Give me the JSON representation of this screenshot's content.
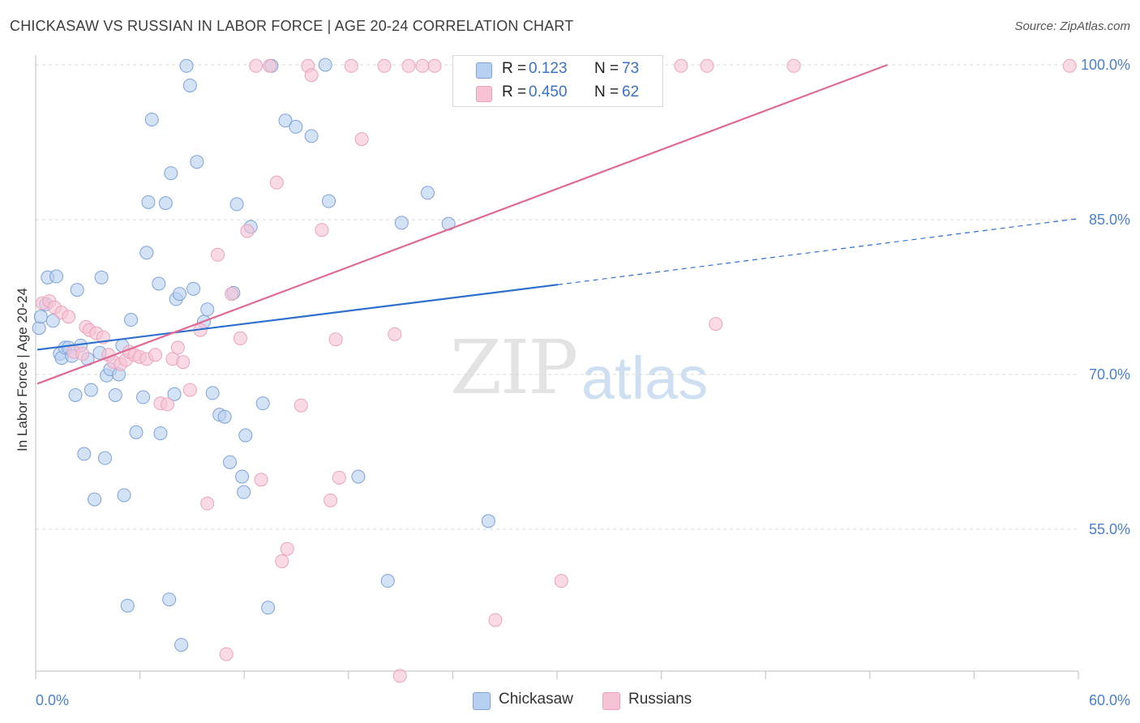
{
  "header": {
    "title": "CHICKASAW VS RUSSIAN IN LABOR FORCE | AGE 20-24 CORRELATION CHART",
    "source": "Source: ZipAtlas.com"
  },
  "watermark": {
    "zip": "ZIP",
    "atlas": "atlas"
  },
  "legend": {
    "rows": [
      {
        "r_label": "R =",
        "r_value": "0.123",
        "n_label": "N =",
        "n_value": "73"
      },
      {
        "r_label": "R =",
        "r_value": "0.450",
        "n_label": "N =",
        "n_value": "62"
      }
    ]
  },
  "bottom_legend": {
    "chickasaw": "Chickasaw",
    "russians": "Russians"
  },
  "colors": {
    "chickasaw_fill": "#b7cff0",
    "chickasaw_stroke": "#7ea3d8",
    "chickasaw_line": "#2f6fd0",
    "russians_fill": "#f7c3d4",
    "russians_stroke": "#eba3ba",
    "russians_line": "#e06a94",
    "tick_label": "#4a7fd0",
    "grid": "#d9d9d9"
  },
  "chart_data": {
    "type": "scatter",
    "title": "CHICKASAW VS RUSSIAN IN LABOR FORCE | AGE 20-24 CORRELATION CHART",
    "xlabel": "",
    "ylabel": "In Labor Force | Age 20-24",
    "xlim": [
      0,
      60
    ],
    "ylim": [
      40,
      100
    ],
    "x_tick_labels": [
      "0.0%",
      "60.0%"
    ],
    "y_ticks": [
      55,
      70,
      85,
      100
    ],
    "y_tick_labels": [
      "55.0%",
      "70.0%",
      "85.0%",
      "100.0%"
    ],
    "grid": true,
    "legend_position": "top-center",
    "series": [
      {
        "name": "Chickasaw",
        "r": 0.123,
        "n": 73,
        "trend": {
          "x": [
            0,
            30
          ],
          "y": [
            72.4,
            78.7
          ],
          "dashed_to": [
            60,
            85.1
          ]
        },
        "points": [
          [
            0.1,
            74.5
          ],
          [
            0.2,
            75.6
          ],
          [
            0.5,
            76.8
          ],
          [
            0.6,
            79.4
          ],
          [
            0.9,
            75.2
          ],
          [
            1.1,
            79.5
          ],
          [
            1.3,
            72.0
          ],
          [
            1.4,
            71.6
          ],
          [
            1.6,
            72.6
          ],
          [
            1.8,
            72.6
          ],
          [
            2.0,
            71.8
          ],
          [
            2.2,
            68.0
          ],
          [
            2.3,
            78.2
          ],
          [
            2.5,
            72.8
          ],
          [
            2.7,
            62.3
          ],
          [
            2.9,
            71.5
          ],
          [
            3.1,
            68.5
          ],
          [
            3.3,
            57.9
          ],
          [
            3.6,
            72.1
          ],
          [
            3.7,
            79.4
          ],
          [
            3.9,
            61.9
          ],
          [
            4.0,
            69.9
          ],
          [
            4.2,
            70.5
          ],
          [
            4.5,
            68.0
          ],
          [
            4.7,
            70.0
          ],
          [
            4.9,
            72.8
          ],
          [
            5.0,
            58.3
          ],
          [
            5.2,
            47.6
          ],
          [
            5.4,
            75.3
          ],
          [
            5.7,
            64.4
          ],
          [
            6.1,
            67.8
          ],
          [
            6.3,
            81.8
          ],
          [
            6.4,
            86.7
          ],
          [
            6.6,
            94.7
          ],
          [
            7.0,
            78.8
          ],
          [
            7.1,
            64.3
          ],
          [
            7.4,
            86.6
          ],
          [
            7.6,
            48.2
          ],
          [
            7.7,
            89.5
          ],
          [
            7.9,
            68.1
          ],
          [
            8.0,
            77.3
          ],
          [
            8.2,
            77.8
          ],
          [
            8.3,
            43.8
          ],
          [
            8.6,
            99.9
          ],
          [
            8.8,
            98.0
          ],
          [
            9.0,
            78.3
          ],
          [
            9.2,
            90.6
          ],
          [
            9.6,
            75.1
          ],
          [
            9.8,
            76.3
          ],
          [
            10.1,
            68.2
          ],
          [
            10.5,
            66.1
          ],
          [
            10.8,
            65.9
          ],
          [
            11.1,
            61.5
          ],
          [
            11.3,
            77.9
          ],
          [
            11.5,
            86.5
          ],
          [
            11.8,
            60.1
          ],
          [
            11.9,
            58.6
          ],
          [
            12.0,
            64.1
          ],
          [
            12.3,
            84.3
          ],
          [
            13.0,
            67.2
          ],
          [
            13.3,
            47.4
          ],
          [
            13.5,
            99.9
          ],
          [
            14.3,
            94.6
          ],
          [
            14.9,
            94.0
          ],
          [
            15.8,
            93.1
          ],
          [
            16.6,
            100.0
          ],
          [
            16.8,
            86.8
          ],
          [
            18.5,
            60.1
          ],
          [
            20.2,
            50.0
          ],
          [
            21.0,
            84.7
          ],
          [
            22.5,
            87.6
          ],
          [
            23.7,
            84.6
          ],
          [
            26.0,
            55.8
          ]
        ]
      },
      {
        "name": "Russians",
        "r": 0.45,
        "n": 62,
        "trend": {
          "x": [
            0,
            49
          ],
          "y": [
            69.1,
            100.0
          ]
        },
        "points": [
          [
            0.3,
            76.9
          ],
          [
            0.7,
            77.1
          ],
          [
            1.0,
            76.5
          ],
          [
            1.4,
            76.0
          ],
          [
            1.8,
            75.6
          ],
          [
            2.1,
            72.2
          ],
          [
            2.6,
            72.0
          ],
          [
            2.8,
            74.6
          ],
          [
            3.0,
            74.3
          ],
          [
            3.4,
            74.0
          ],
          [
            3.8,
            73.6
          ],
          [
            4.1,
            71.9
          ],
          [
            4.4,
            71.2
          ],
          [
            4.8,
            71.0
          ],
          [
            5.1,
            71.4
          ],
          [
            5.3,
            72.2
          ],
          [
            5.6,
            71.9
          ],
          [
            5.9,
            71.7
          ],
          [
            6.3,
            71.5
          ],
          [
            6.8,
            71.9
          ],
          [
            7.1,
            67.2
          ],
          [
            7.5,
            67.1
          ],
          [
            7.8,
            71.5
          ],
          [
            8.1,
            72.6
          ],
          [
            8.4,
            71.2
          ],
          [
            8.8,
            68.5
          ],
          [
            9.4,
            74.3
          ],
          [
            9.8,
            57.5
          ],
          [
            10.4,
            81.6
          ],
          [
            10.9,
            42.9
          ],
          [
            11.2,
            77.8
          ],
          [
            11.7,
            73.5
          ],
          [
            12.1,
            83.9
          ],
          [
            12.6,
            99.9
          ],
          [
            12.9,
            59.8
          ],
          [
            13.4,
            99.9
          ],
          [
            13.8,
            88.6
          ],
          [
            14.1,
            51.9
          ],
          [
            14.4,
            53.1
          ],
          [
            15.2,
            67.0
          ],
          [
            15.6,
            99.9
          ],
          [
            15.8,
            99.0
          ],
          [
            16.4,
            84.0
          ],
          [
            16.9,
            57.8
          ],
          [
            17.2,
            73.4
          ],
          [
            17.4,
            60.0
          ],
          [
            18.1,
            99.9
          ],
          [
            18.7,
            92.8
          ],
          [
            20.0,
            99.9
          ],
          [
            20.6,
            73.9
          ],
          [
            20.9,
            40.8
          ],
          [
            21.4,
            99.9
          ],
          [
            22.2,
            99.9
          ],
          [
            22.9,
            99.9
          ],
          [
            26.4,
            46.2
          ],
          [
            28.5,
            99.9
          ],
          [
            30.2,
            50.0
          ],
          [
            37.1,
            99.9
          ],
          [
            38.6,
            99.9
          ],
          [
            39.1,
            74.9
          ],
          [
            43.6,
            99.9
          ],
          [
            59.5,
            99.9
          ]
        ]
      }
    ]
  }
}
